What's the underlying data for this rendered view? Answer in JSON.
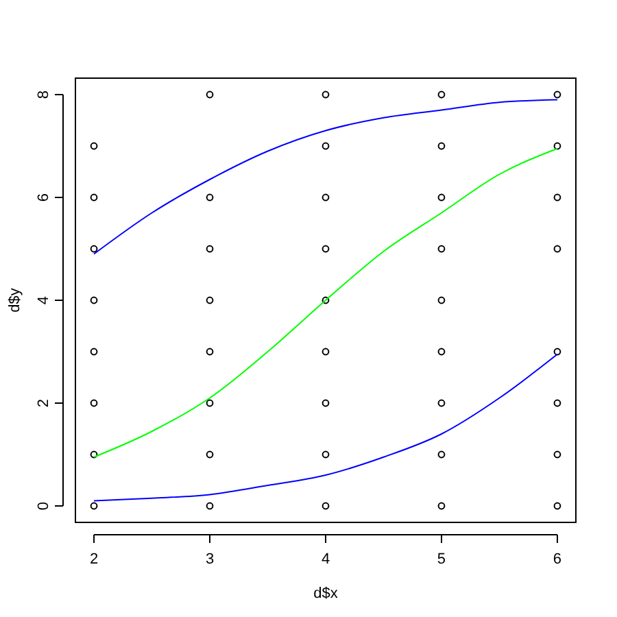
{
  "chart_data": {
    "type": "scatter",
    "xlabel": "d$x",
    "ylabel": "d$y",
    "xlim": [
      1.84,
      6.16
    ],
    "ylim": [
      -0.32,
      8.32
    ],
    "xticks": [
      2,
      3,
      4,
      5,
      6
    ],
    "yticks": [
      0,
      2,
      4,
      6,
      8
    ],
    "grid": false,
    "series": [
      {
        "marker": "circle",
        "color": "#000000",
        "x": [
          2,
          2,
          2,
          2,
          2,
          2,
          2,
          2,
          3,
          3,
          3,
          3,
          3,
          3,
          3,
          3,
          4,
          4,
          4,
          4,
          4,
          4,
          4,
          4,
          4,
          5,
          5,
          5,
          5,
          5,
          5,
          5,
          5,
          5,
          6,
          6,
          6,
          6,
          6,
          6,
          6,
          6
        ],
        "values": [
          0,
          1,
          2,
          3,
          4,
          5,
          6,
          7,
          0,
          1,
          2,
          3,
          4,
          5,
          6,
          8,
          0,
          1,
          2,
          3,
          4,
          5,
          6,
          7,
          8,
          0,
          1,
          2,
          3,
          4,
          5,
          6,
          7,
          8,
          0,
          1,
          2,
          3,
          5,
          6,
          7,
          8
        ]
      },
      {
        "type": "line",
        "marker": "none",
        "color": "#0000ff",
        "x": [
          2,
          2.5,
          3,
          3.5,
          4,
          4.5,
          5,
          5.5,
          6
        ],
        "values": [
          4.9,
          5.7,
          6.35,
          6.9,
          7.3,
          7.55,
          7.7,
          7.85,
          7.9
        ]
      },
      {
        "type": "line",
        "marker": "none",
        "color": "#00ff00",
        "x": [
          2,
          2.5,
          3,
          3.5,
          4,
          4.5,
          5,
          5.5,
          6
        ],
        "values": [
          0.95,
          1.45,
          2.1,
          3.0,
          4.0,
          4.95,
          5.7,
          6.45,
          6.95
        ]
      },
      {
        "type": "line",
        "marker": "none",
        "color": "#0000ff",
        "x": [
          2,
          2.5,
          3,
          3.5,
          4,
          4.5,
          5,
          5.5,
          6
        ],
        "values": [
          0.1,
          0.15,
          0.22,
          0.4,
          0.6,
          0.95,
          1.4,
          2.1,
          2.95
        ]
      }
    ]
  }
}
